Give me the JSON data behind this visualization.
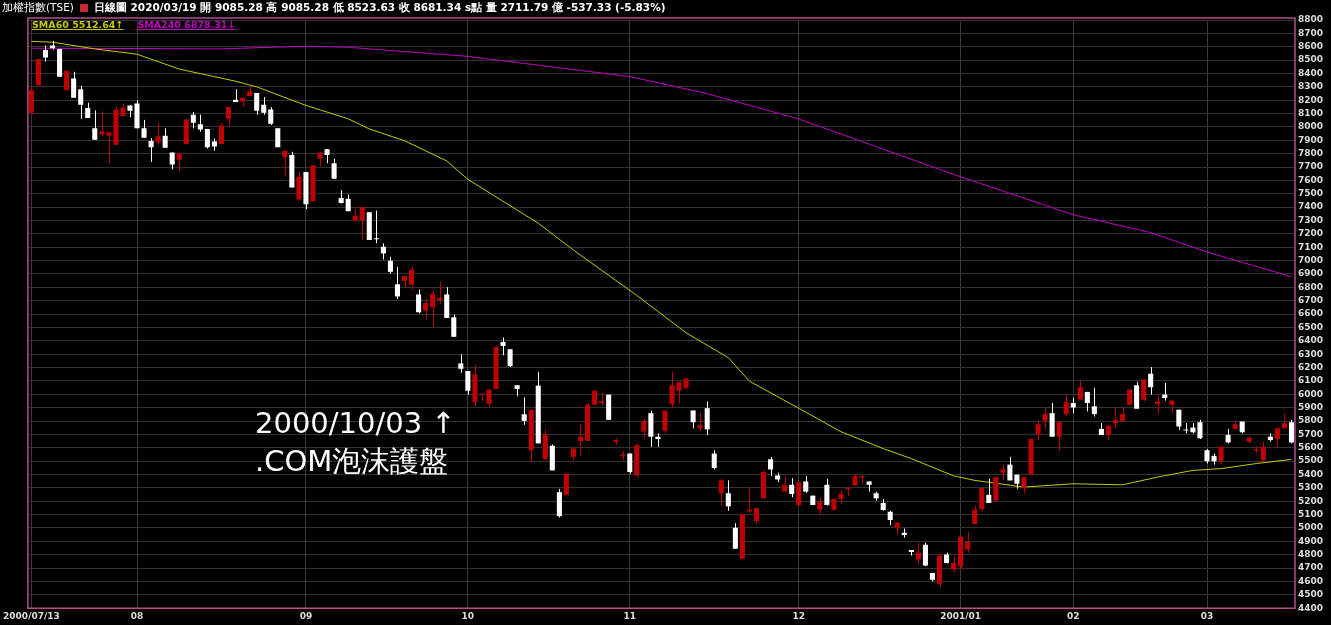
{
  "chart_data": {
    "type": "candlestick",
    "title": "加權指數(TSE)",
    "subtitle": "日線圖  2020/03/19  開 9085.28  高 9085.28  低 8523.63  收 8681.34  s點  量 2711.79 億  -537.33 (-5.83%)",
    "annotations": [
      "2000/10/03 ↑",
      ".COM泡沫護盤"
    ],
    "categories": [
      "2000/07/13",
      null,
      null,
      null,
      null,
      null,
      null,
      null,
      null,
      null,
      null,
      null,
      null,
      null,
      null,
      "08",
      null,
      null,
      null,
      null,
      null,
      null,
      null,
      null,
      null,
      null,
      null,
      null,
      null,
      null,
      null,
      null,
      null,
      null,
      null,
      null,
      null,
      null,
      null,
      "09",
      null,
      null,
      null,
      null,
      null,
      null,
      null,
      null,
      null,
      null,
      null,
      null,
      null,
      null,
      null,
      null,
      null,
      null,
      null,
      null,
      null,
      null,
      "10",
      null,
      null,
      null,
      null,
      null,
      null,
      null,
      null,
      null,
      null,
      null,
      null,
      null,
      null,
      null,
      null,
      null,
      null,
      null,
      null,
      null,
      null,
      "11",
      null,
      null,
      null,
      null,
      null,
      null,
      null,
      null,
      null,
      null,
      null,
      null,
      null,
      null,
      null,
      null,
      null,
      null,
      null,
      null,
      null,
      null,
      null,
      "12",
      null,
      null,
      null,
      null,
      null,
      null,
      null,
      null,
      null,
      null,
      null,
      null,
      null,
      null,
      null,
      null,
      null,
      null,
      null,
      null,
      null,
      null,
      "2001/01",
      null,
      null,
      null,
      null,
      null,
      null,
      null,
      null,
      null,
      null,
      null,
      null,
      null,
      null,
      null,
      "02",
      null,
      null,
      null,
      null,
      null,
      null,
      null,
      null,
      null,
      null,
      null,
      null,
      null,
      null,
      null,
      null,
      null,
      null,
      "03",
      null,
      null,
      null,
      null,
      null,
      null,
      null,
      null,
      null,
      null,
      null,
      null
    ],
    "ohlc": [
      [
        8106,
        8300,
        8106,
        8275
      ],
      [
        8312,
        8509,
        8312,
        8509
      ],
      [
        8576,
        8609,
        8488,
        8519
      ],
      [
        8609,
        8644,
        8576,
        8589
      ],
      [
        8584,
        8584,
        8375,
        8375
      ],
      [
        8275,
        8420,
        8275,
        8420
      ],
      [
        8363,
        8413,
        8219,
        8219
      ],
      [
        8282,
        8307,
        8061,
        8166
      ],
      [
        8141,
        8181,
        8066,
        8066
      ],
      [
        7990,
        8124,
        7905,
        7905
      ],
      [
        7945,
        8116,
        7930,
        7965
      ],
      [
        7935,
        7960,
        7728,
        7960
      ],
      [
        7867,
        8149,
        7867,
        8129
      ],
      [
        8081,
        8176,
        8081,
        8146
      ],
      [
        8161,
        8161,
        8073,
        8121
      ],
      [
        8176,
        8199,
        7990,
        7990
      ],
      [
        7990,
        8053,
        7920,
        7920
      ],
      [
        7895,
        7915,
        7739,
        7849
      ],
      [
        7885,
        8036,
        7872,
        7930
      ],
      [
        7935,
        7990,
        7844,
        7844
      ],
      [
        7809,
        7809,
        7683,
        7719
      ],
      [
        7754,
        7804,
        7671,
        7804
      ],
      [
        7872,
        8056,
        7872,
        8056
      ],
      [
        8091,
        8111,
        7990,
        8031
      ],
      [
        8020,
        8091,
        7965,
        7980
      ],
      [
        7985,
        7985,
        7839,
        7849
      ],
      [
        7892,
        7915,
        7822,
        7854
      ],
      [
        7872,
        8028,
        7872,
        8010
      ],
      [
        8061,
        8149,
        8005,
        8149
      ],
      [
        8204,
        8282,
        8186,
        8186
      ],
      [
        8191,
        8219,
        8156,
        8219
      ],
      [
        8232,
        8307,
        8232,
        8267
      ],
      [
        8254,
        8254,
        8091,
        8121
      ],
      [
        8166,
        8224,
        8091,
        8106
      ],
      [
        8131,
        8149,
        8015,
        8023
      ],
      [
        7990,
        7990,
        7849,
        7849
      ],
      [
        7774,
        7822,
        7628,
        7822
      ],
      [
        7791,
        7814,
        7547,
        7547
      ],
      [
        7457,
        7663,
        7457,
        7628
      ],
      [
        7663,
        7663,
        7386,
        7422
      ],
      [
        7444,
        7714,
        7444,
        7714
      ],
      [
        7764,
        7809,
        7703,
        7809
      ],
      [
        7834,
        7834,
        7729,
        7791
      ],
      [
        7729,
        7764,
        7613,
        7613
      ],
      [
        7469,
        7527,
        7427,
        7432
      ],
      [
        7462,
        7494,
        7369,
        7369
      ],
      [
        7298,
        7381,
        7298,
        7336
      ],
      [
        7301,
        7401,
        7160,
        7401
      ],
      [
        7361,
        7361,
        7155,
        7155
      ],
      [
        7165,
        7374,
        7130,
        7160
      ],
      [
        7104,
        7130,
        7009,
        7054
      ],
      [
        6999,
        7029,
        6903,
        6916
      ],
      [
        6823,
        6953,
        6714,
        6732
      ],
      [
        6848,
        6886,
        6802,
        6886
      ],
      [
        6820,
        6953,
        6782,
        6933
      ],
      [
        6747,
        6782,
        6606,
        6614
      ],
      [
        6626,
        6714,
        6556,
        6682
      ],
      [
        6652,
        6777,
        6501,
        6752
      ],
      [
        6707,
        6840,
        6677,
        6722
      ],
      [
        6747,
        6802,
        6571,
        6571
      ],
      [
        6576,
        6596,
        6430,
        6430
      ],
      [
        6231,
        6299,
        6161,
        6191
      ],
      [
        6174,
        6174,
        5997,
        6027
      ],
      [
        5942,
        6216,
        5909,
        6148
      ],
      [
        5997,
        6004,
        5947,
        6004
      ],
      [
        5927,
        6035,
        5909,
        6035
      ],
      [
        6040,
        6362,
        6040,
        6355
      ],
      [
        6392,
        6425,
        6292,
        6362
      ],
      [
        6337,
        6337,
        6204,
        6211
      ],
      [
        6068,
        6068,
        5985,
        6040
      ],
      [
        5851,
        5977,
        5771,
        5801
      ],
      [
        5582,
        5884,
        5494,
        5884
      ],
      [
        6065,
        6168,
        5633,
        5633
      ],
      [
        5514,
        5733,
        5507,
        5700
      ],
      [
        5615,
        5625,
        5431,
        5431
      ],
      [
        5268,
        5293,
        5079,
        5087
      ],
      [
        5248,
        5406,
        5243,
        5406
      ],
      [
        5532,
        5607,
        5507,
        5595
      ],
      [
        5650,
        5771,
        5545,
        5683
      ],
      [
        5650,
        5934,
        5650,
        5922
      ],
      [
        5922,
        6035,
        5917,
        6027
      ],
      [
        5934,
        6010,
        5917,
        5947
      ],
      [
        5997,
        5997,
        5809,
        5809
      ],
      [
        5645,
        5670,
        5620,
        5658
      ],
      [
        5539,
        5575,
        5507,
        5549
      ],
      [
        5557,
        5557,
        5406,
        5419
      ],
      [
        5394,
        5633,
        5381,
        5620
      ],
      [
        5721,
        5816,
        5670,
        5801
      ],
      [
        5859,
        5877,
        5607,
        5683
      ],
      [
        5683,
        5708,
        5607,
        5665
      ],
      [
        5726,
        5877,
        5708,
        5877
      ],
      [
        5927,
        6168,
        5897,
        6068
      ],
      [
        6027,
        6093,
        5934,
        6093
      ],
      [
        6048,
        6118,
        6035,
        6118
      ],
      [
        5879,
        5879,
        5745,
        5791
      ],
      [
        5745,
        5859,
        5725,
        5770
      ],
      [
        5896,
        5947,
        5695,
        5738
      ],
      [
        5557,
        5582,
        5438,
        5449
      ],
      [
        5262,
        5368,
        5167,
        5356
      ],
      [
        5260,
        5356,
        5129,
        5162
      ],
      [
        5001,
        5036,
        4845,
        4845
      ],
      [
        4769,
        5104,
        4764,
        5104
      ],
      [
        5124,
        5305,
        5116,
        5137
      ],
      [
        5053,
        5149,
        5028,
        5149
      ],
      [
        5222,
        5431,
        5217,
        5418
      ],
      [
        5514,
        5532,
        5388,
        5438
      ],
      [
        5393,
        5413,
        5343,
        5363
      ],
      [
        5272,
        5388,
        5272,
        5323
      ],
      [
        5323,
        5373,
        5230,
        5255
      ],
      [
        5172,
        5343,
        5167,
        5343
      ],
      [
        5348,
        5388,
        5262,
        5272
      ],
      [
        5242,
        5242,
        5172,
        5172
      ],
      [
        5137,
        5230,
        5104,
        5197
      ],
      [
        5323,
        5368,
        5167,
        5172
      ],
      [
        5137,
        5217,
        5129,
        5217
      ],
      [
        5217,
        5280,
        5179,
        5255
      ],
      [
        5288,
        5305,
        5237,
        5298
      ],
      [
        5318,
        5406,
        5318,
        5388
      ],
      [
        5376,
        5398,
        5330,
        5388
      ],
      [
        5348,
        5348,
        5272,
        5323
      ],
      [
        5260,
        5272,
        5204,
        5222
      ],
      [
        5187,
        5217,
        5129,
        5134
      ],
      [
        5121,
        5129,
        5021,
        5059
      ],
      [
        5003,
        5046,
        4953,
        5041
      ],
      [
        4965,
        4996,
        4928,
        4948
      ],
      [
        4835,
        4835,
        4794,
        4820
      ],
      [
        4764,
        4890,
        4726,
        4814
      ],
      [
        4875,
        4890,
        4714,
        4719
      ],
      [
        4664,
        4664,
        4601,
        4613
      ],
      [
        4583,
        4802,
        4558,
        4794
      ],
      [
        4802,
        4815,
        4734,
        4739
      ],
      [
        4689,
        4794,
        4669,
        4739
      ],
      [
        4714,
        4940,
        4689,
        4935
      ],
      [
        4840,
        4970,
        4815,
        4895
      ],
      [
        5029,
        5167,
        5029,
        5137
      ],
      [
        5142,
        5298,
        5122,
        5298
      ],
      [
        5248,
        5369,
        5187,
        5187
      ],
      [
        5205,
        5381,
        5205,
        5381
      ],
      [
        5414,
        5474,
        5356,
        5439
      ],
      [
        5474,
        5532,
        5356,
        5356
      ],
      [
        5399,
        5399,
        5293,
        5331
      ],
      [
        5298,
        5381,
        5256,
        5381
      ],
      [
        5399,
        5666,
        5399,
        5666
      ],
      [
        5701,
        5801,
        5658,
        5776
      ],
      [
        5797,
        5897,
        5734,
        5852
      ],
      [
        5859,
        5935,
        5683,
        5683
      ],
      [
        5683,
        5796,
        5582,
        5796
      ],
      [
        5852,
        5998,
        5834,
        5942
      ],
      [
        5935,
        5973,
        5859,
        5902
      ],
      [
        5960,
        6104,
        5960,
        6053
      ],
      [
        6018,
        6018,
        5872,
        5935
      ],
      [
        5910,
        6048,
        5834,
        5852
      ],
      [
        5741,
        5784,
        5696,
        5696
      ],
      [
        5696,
        5766,
        5658,
        5766
      ],
      [
        5784,
        5902,
        5746,
        5809
      ],
      [
        5801,
        5902,
        5796,
        5852
      ],
      [
        5922,
        6036,
        5922,
        6036
      ],
      [
        6068,
        6093,
        5892,
        5892
      ],
      [
        5960,
        6111,
        5947,
        6111
      ],
      [
        6154,
        6204,
        5998,
        6053
      ],
      [
        5927,
        5998,
        5852,
        5947
      ],
      [
        5998,
        6086,
        5953,
        5973
      ],
      [
        5922,
        5953,
        5859,
        5953
      ],
      [
        5885,
        5885,
        5734,
        5759
      ],
      [
        5734,
        5784,
        5708,
        5729
      ],
      [
        5751,
        5784,
        5708,
        5716
      ],
      [
        5791,
        5809,
        5666,
        5671
      ],
      [
        5582,
        5590,
        5482,
        5499
      ],
      [
        5540,
        5557,
        5474,
        5499
      ],
      [
        5499,
        5608,
        5474,
        5608
      ],
      [
        5696,
        5741,
        5633,
        5640
      ],
      [
        5741,
        5796,
        5741,
        5776
      ],
      [
        5796,
        5796,
        5708,
        5716
      ],
      [
        5645,
        5683,
        5633,
        5676
      ],
      [
        5580,
        5615,
        5557,
        5590
      ],
      [
        5507,
        5646,
        5499,
        5608
      ],
      [
        5683,
        5709,
        5646,
        5658
      ],
      [
        5666,
        5746,
        5595,
        5746
      ],
      [
        5746,
        5852,
        5741,
        5784
      ],
      [
        5791,
        5809,
        5633,
        5640
      ]
    ],
    "colors": [
      "#c00000",
      "#c00000",
      "#ffffff",
      "#ffffff",
      "#ffffff",
      "#c00000",
      "#ffffff",
      "#ffffff",
      "#ffffff",
      "#ffffff",
      "#c00000",
      "#c00000",
      "#c00000",
      "#c00000",
      "#ffffff",
      "#ffffff",
      "#ffffff",
      "#ffffff",
      "#c00000",
      "#ffffff",
      "#ffffff",
      "#c00000",
      "#c00000",
      "#ffffff",
      "#ffffff",
      "#ffffff",
      "#ffffff",
      "#c00000",
      "#c00000",
      "#ffffff",
      "#c00000",
      "#c00000",
      "#ffffff",
      "#ffffff",
      "#ffffff",
      "#ffffff",
      "#c00000",
      "#ffffff",
      "#c00000",
      "#ffffff",
      "#c00000",
      "#c00000",
      "#ffffff",
      "#ffffff",
      "#ffffff",
      "#ffffff",
      "#c00000",
      "#c00000",
      "#ffffff",
      "#ffffff",
      "#ffffff",
      "#ffffff",
      "#ffffff",
      "#c00000",
      "#c00000",
      "#ffffff",
      "#c00000",
      "#c00000",
      "#c00000",
      "#ffffff",
      "#ffffff",
      "#ffffff",
      "#ffffff",
      "#c00000",
      "#c00000",
      "#c00000",
      "#c00000",
      "#ffffff",
      "#ffffff",
      "#ffffff",
      "#ffffff",
      "#c00000",
      "#ffffff",
      "#c00000",
      "#ffffff",
      "#ffffff",
      "#c00000",
      "#c00000",
      "#c00000",
      "#c00000",
      "#c00000",
      "#c00000",
      "#ffffff",
      "#c00000",
      "#c00000",
      "#ffffff",
      "#c00000",
      "#c00000",
      "#ffffff",
      "#ffffff",
      "#c00000",
      "#c00000",
      "#c00000",
      "#c00000",
      "#ffffff",
      "#c00000",
      "#ffffff",
      "#ffffff",
      "#c00000",
      "#ffffff",
      "#ffffff",
      "#c00000",
      "#c00000",
      "#c00000",
      "#c00000",
      "#ffffff",
      "#ffffff",
      "#c00000",
      "#ffffff",
      "#c00000",
      "#ffffff",
      "#ffffff",
      "#c00000",
      "#ffffff",
      "#c00000",
      "#c00000",
      "#c00000",
      "#c00000",
      "#c00000",
      "#ffffff",
      "#ffffff",
      "#ffffff",
      "#ffffff",
      "#c00000",
      "#ffffff",
      "#ffffff",
      "#c00000",
      "#ffffff",
      "#ffffff",
      "#c00000",
      "#ffffff",
      "#c00000",
      "#c00000",
      "#c00000",
      "#c00000",
      "#c00000",
      "#ffffff",
      "#c00000",
      "#c00000",
      "#ffffff",
      "#ffffff",
      "#c00000",
      "#c00000",
      "#c00000",
      "#c00000",
      "#ffffff",
      "#c00000",
      "#c00000",
      "#ffffff",
      "#c00000",
      "#ffffff",
      "#ffffff",
      "#ffffff",
      "#c00000",
      "#c00000",
      "#c00000",
      "#c00000",
      "#ffffff",
      "#c00000",
      "#ffffff",
      "#c00000",
      "#ffffff",
      "#c00000",
      "#ffffff",
      "#ffffff",
      "#ffffff",
      "#ffffff",
      "#ffffff",
      "#ffffff",
      "#c00000",
      "#ffffff",
      "#c00000",
      "#ffffff",
      "#c00000",
      "#c00000",
      "#c00000",
      "#ffffff",
      "#c00000",
      "#c00000",
      "#ffffff"
    ],
    "series": [
      {
        "type": "line",
        "name": "SMA60 5512.64↑",
        "color": "#c8c800",
        "values": [
          8640,
          null,
          null,
          8634,
          null,
          null,
          null,
          null,
          null,
          8584,
          null,
          null,
          null,
          null,
          null,
          8544,
          null,
          null,
          null,
          null,
          null,
          8433,
          null,
          null,
          null,
          null,
          null,
          null,
          null,
          8342,
          null,
          null,
          8300,
          null,
          null,
          null,
          null,
          null,
          null,
          8161,
          null,
          null,
          null,
          null,
          null,
          8061,
          null,
          null,
          7985,
          null,
          null,
          null,
          null,
          7897,
          null,
          null,
          null,
          null,
          null,
          7746,
          null,
          null,
          7608,
          null,
          null,
          null,
          null,
          7444,
          null,
          null,
          null,
          null,
          7280,
          null,
          null,
          null,
          null,
          7079,
          null,
          null,
          null,
          6928,
          null,
          null,
          null,
          null,
          6740,
          null,
          null,
          null,
          null,
          null,
          null,
          6460,
          null,
          null,
          null,
          null,
          null,
          6274,
          null,
          null,
          6098,
          null,
          null,
          null,
          null,
          null,
          null,
          5896,
          null,
          null,
          null,
          null,
          null,
          5720,
          null,
          null,
          null,
          null,
          null,
          5594,
          null,
          null,
          null,
          5519,
          null,
          null,
          null,
          null,
          null,
          5390,
          null,
          null,
          5356,
          null,
          null,
          null,
          null,
          null,
          null,
          5306,
          null,
          null,
          null,
          null,
          null,
          null,
          5331,
          null,
          null,
          null,
          null,
          null,
          null,
          5323,
          null,
          null,
          null,
          null,
          5381,
          null,
          null,
          null,
          null,
          5431,
          null,
          null,
          null,
          5444,
          null,
          null,
          null,
          null,
          5482,
          null,
          null,
          null,
          null,
          5513
        ]
      },
      {
        "type": "line",
        "name": "SMA240 6878.31↓",
        "color": "#c000c0",
        "values": [
          8589,
          null,
          null,
          null,
          null,
          null,
          null,
          null,
          null,
          null,
          null,
          null,
          null,
          null,
          null,
          null,
          null,
          null,
          null,
          null,
          null,
          null,
          null,
          null,
          null,
          null,
          null,
          8584,
          null,
          null,
          null,
          null,
          null,
          null,
          null,
          null,
          null,
          null,
          null,
          8604,
          null,
          null,
          null,
          null,
          null,
          8596,
          null,
          null,
          null,
          null,
          null,
          null,
          null,
          null,
          null,
          null,
          null,
          null,
          null,
          null,
          null,
          null,
          8528,
          null,
          null,
          null,
          null,
          null,
          null,
          null,
          null,
          null,
          null,
          null,
          null,
          null,
          null,
          null,
          null,
          null,
          null,
          null,
          null,
          null,
          null,
          8377,
          null,
          null,
          null,
          null,
          null,
          null,
          null,
          null,
          null,
          null,
          8249,
          null,
          null,
          null,
          null,
          null,
          null,
          null,
          null,
          null,
          null,
          null,
          null,
          8060,
          null,
          null,
          null,
          null,
          null,
          null,
          null,
          null,
          null,
          null,
          null,
          null,
          null,
          null,
          null,
          null,
          null,
          null,
          null,
          null,
          null,
          7645,
          null,
          null,
          null,
          null,
          null,
          null,
          null,
          null,
          null,
          null,
          null,
          null,
          null,
          null,
          null,
          null,
          7343,
          null,
          null,
          null,
          null,
          null,
          null,
          null,
          null,
          null,
          null,
          7210,
          null,
          null,
          null,
          null,
          null,
          null,
          null,
          7064,
          null,
          null,
          null,
          null,
          null,
          null,
          null,
          null,
          null,
          null,
          null,
          6880
        ]
      }
    ],
    "ylim": [
      4400,
      8800
    ],
    "yticks": [
      4400,
      4500,
      4600,
      4700,
      4800,
      4900,
      5000,
      5100,
      5200,
      5300,
      5400,
      5500,
      5600,
      5700,
      5800,
      5900,
      6000,
      6100,
      6200,
      6300,
      6400,
      6500,
      6600,
      6700,
      6800,
      6900,
      7000,
      7100,
      7200,
      7300,
      7400,
      7500,
      7600,
      7700,
      7800,
      7900,
      8000,
      8100,
      8200,
      8300,
      8400,
      8500,
      8600,
      8700,
      8800
    ],
    "grid": true,
    "legend": "top left"
  }
}
